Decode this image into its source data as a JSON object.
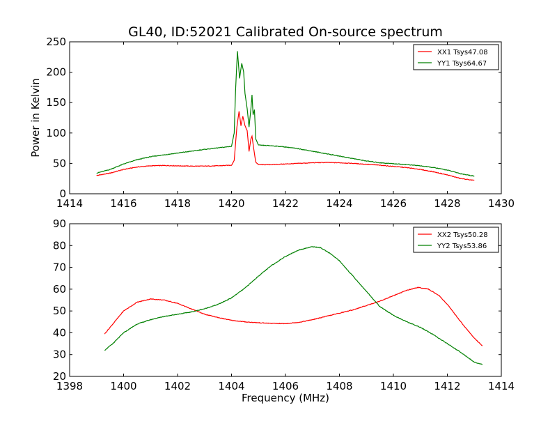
{
  "chart_data": [
    {
      "type": "line",
      "title": "GL40, ID:52021 Calibrated On-source spectrum",
      "xlabel": "",
      "ylabel": "Power in Kelvin",
      "xlim": [
        1414,
        1430
      ],
      "ylim": [
        0,
        250
      ],
      "xticks": [
        1414,
        1416,
        1418,
        1420,
        1422,
        1424,
        1426,
        1428,
        1430
      ],
      "yticks": [
        0,
        50,
        100,
        150,
        200,
        250
      ],
      "grid": false,
      "legend_position": "top-right",
      "series": [
        {
          "name": "XX1 Tsys47.08",
          "color": "#ff0000",
          "points": [
            [
              1415.0,
              30
            ],
            [
              1415.5,
              34
            ],
            [
              1416.0,
              40
            ],
            [
              1416.5,
              44
            ],
            [
              1417.0,
              46
            ],
            [
              1417.5,
              46.5
            ],
            [
              1418.0,
              46
            ],
            [
              1418.5,
              45.5
            ],
            [
              1419.0,
              45.5
            ],
            [
              1419.5,
              46
            ],
            [
              1420.0,
              47
            ],
            [
              1420.1,
              55
            ],
            [
              1420.2,
              110
            ],
            [
              1420.28,
              136
            ],
            [
              1420.35,
              112
            ],
            [
              1420.42,
              128
            ],
            [
              1420.5,
              112
            ],
            [
              1420.58,
              104
            ],
            [
              1420.65,
              70
            ],
            [
              1420.72,
              90
            ],
            [
              1420.76,
              95
            ],
            [
              1420.82,
              75
            ],
            [
              1420.9,
              52
            ],
            [
              1421.0,
              48
            ],
            [
              1421.5,
              48
            ],
            [
              1422.0,
              49
            ],
            [
              1422.5,
              50
            ],
            [
              1423.0,
              51
            ],
            [
              1423.5,
              51.5
            ],
            [
              1424.0,
              51
            ],
            [
              1424.5,
              50
            ],
            [
              1425.0,
              48.5
            ],
            [
              1425.5,
              47
            ],
            [
              1426.0,
              45
            ],
            [
              1426.5,
              43
            ],
            [
              1427.0,
              40
            ],
            [
              1427.5,
              36
            ],
            [
              1428.0,
              31
            ],
            [
              1428.5,
              25
            ],
            [
              1429.0,
              22
            ]
          ]
        },
        {
          "name": "YY1 Tsys64.67",
          "color": "#008000",
          "points": [
            [
              1415.0,
              34
            ],
            [
              1415.5,
              40
            ],
            [
              1416.0,
              49
            ],
            [
              1416.5,
              56
            ],
            [
              1417.0,
              61
            ],
            [
              1417.5,
              64
            ],
            [
              1418.0,
              67
            ],
            [
              1418.5,
              70
            ],
            [
              1419.0,
              73
            ],
            [
              1419.5,
              75.5
            ],
            [
              1420.0,
              78
            ],
            [
              1420.1,
              100
            ],
            [
              1420.15,
              170
            ],
            [
              1420.22,
              235
            ],
            [
              1420.3,
              190
            ],
            [
              1420.38,
              215
            ],
            [
              1420.45,
              200
            ],
            [
              1420.5,
              165
            ],
            [
              1420.58,
              140
            ],
            [
              1420.65,
              110
            ],
            [
              1420.72,
              140
            ],
            [
              1420.76,
              163
            ],
            [
              1420.8,
              130
            ],
            [
              1420.85,
              138
            ],
            [
              1420.9,
              90
            ],
            [
              1421.0,
              80
            ],
            [
              1421.5,
              79
            ],
            [
              1422.0,
              77
            ],
            [
              1422.5,
              74
            ],
            [
              1423.0,
              70
            ],
            [
              1423.5,
              66
            ],
            [
              1424.0,
              62
            ],
            [
              1424.5,
              58
            ],
            [
              1425.0,
              54
            ],
            [
              1425.5,
              51
            ],
            [
              1426.0,
              49.5
            ],
            [
              1426.5,
              48
            ],
            [
              1427.0,
              46
            ],
            [
              1427.5,
              43
            ],
            [
              1428.0,
              39
            ],
            [
              1428.5,
              33
            ],
            [
              1429.0,
              29
            ]
          ]
        }
      ]
    },
    {
      "type": "line",
      "title": "",
      "xlabel": "Frequency (MHz)",
      "ylabel": "",
      "xlim": [
        1398,
        1414
      ],
      "ylim": [
        20,
        90
      ],
      "xticks": [
        1398,
        1400,
        1402,
        1404,
        1406,
        1408,
        1410,
        1412,
        1414
      ],
      "yticks": [
        20,
        30,
        40,
        50,
        60,
        70,
        80,
        90
      ],
      "grid": false,
      "legend_position": "top-right",
      "series": [
        {
          "name": "XX2 Tsys50.28",
          "color": "#ff0000",
          "points": [
            [
              1399.3,
              39.5
            ],
            [
              1399.6,
              44
            ],
            [
              1400.0,
              50
            ],
            [
              1400.5,
              54
            ],
            [
              1401.0,
              55.5
            ],
            [
              1401.5,
              55
            ],
            [
              1402.0,
              53.5
            ],
            [
              1402.5,
              51
            ],
            [
              1403.0,
              48.5
            ],
            [
              1403.5,
              47
            ],
            [
              1404.0,
              45.7
            ],
            [
              1404.5,
              45
            ],
            [
              1405.0,
              44.6
            ],
            [
              1405.5,
              44.3
            ],
            [
              1406.0,
              44.2
            ],
            [
              1406.5,
              44.8
            ],
            [
              1407.0,
              46
            ],
            [
              1407.5,
              47.5
            ],
            [
              1408.0,
              49
            ],
            [
              1408.5,
              50.5
            ],
            [
              1409.0,
              52.5
            ],
            [
              1409.5,
              54.5
            ],
            [
              1410.0,
              57
            ],
            [
              1410.5,
              59.5
            ],
            [
              1410.9,
              60.8
            ],
            [
              1411.3,
              60
            ],
            [
              1411.7,
              57
            ],
            [
              1412.0,
              53
            ],
            [
              1412.5,
              45
            ],
            [
              1413.0,
              37.5
            ],
            [
              1413.3,
              34
            ]
          ]
        },
        {
          "name": "YY2 Tsys53.86",
          "color": "#008000",
          "points": [
            [
              1399.3,
              32
            ],
            [
              1399.6,
              35
            ],
            [
              1400.0,
              40
            ],
            [
              1400.5,
              44
            ],
            [
              1401.0,
              46
            ],
            [
              1401.5,
              47.5
            ],
            [
              1402.0,
              48.5
            ],
            [
              1402.5,
              49.5
            ],
            [
              1403.0,
              51
            ],
            [
              1403.5,
              53
            ],
            [
              1404.0,
              56
            ],
            [
              1404.5,
              60.5
            ],
            [
              1405.0,
              66
            ],
            [
              1405.5,
              71
            ],
            [
              1406.0,
              75
            ],
            [
              1406.5,
              78
            ],
            [
              1407.0,
              79.5
            ],
            [
              1407.3,
              79
            ],
            [
              1407.7,
              76
            ],
            [
              1408.0,
              73
            ],
            [
              1408.5,
              66
            ],
            [
              1409.0,
              59
            ],
            [
              1409.5,
              52
            ],
            [
              1410.0,
              48
            ],
            [
              1410.5,
              45
            ],
            [
              1411.0,
              42.5
            ],
            [
              1411.5,
              39
            ],
            [
              1412.0,
              35
            ],
            [
              1412.5,
              31
            ],
            [
              1413.0,
              26.5
            ],
            [
              1413.3,
              25.5
            ]
          ]
        }
      ]
    }
  ]
}
